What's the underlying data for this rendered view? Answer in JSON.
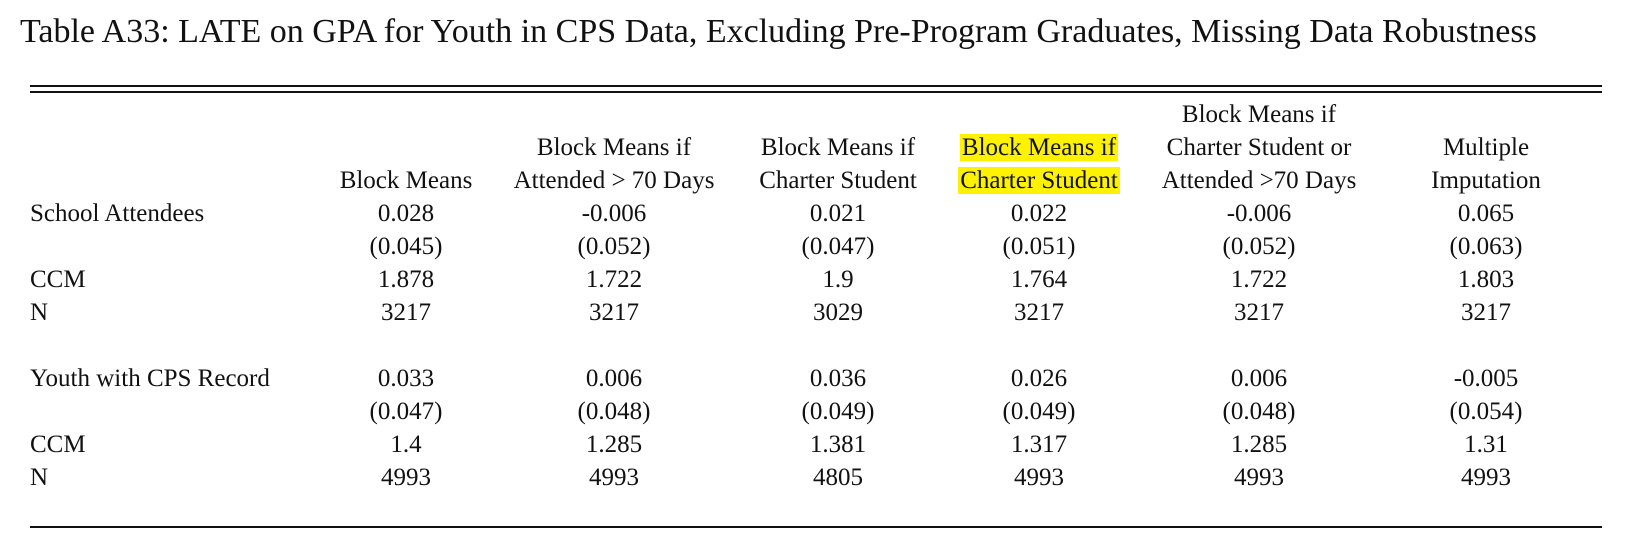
{
  "title": "Table A33: LATE on GPA for Youth in CPS Data, Excluding Pre-Program Graduates, Missing Data Robustness",
  "header": {
    "col1": [
      "",
      "",
      "Block Means"
    ],
    "col2": [
      "",
      "Block Means if",
      "Attended > 70 Days"
    ],
    "col3": [
      "",
      "Block Means if",
      "Charter Student"
    ],
    "col4": [
      "",
      "Block Means if",
      "Charter Student"
    ],
    "col5": [
      "Block Means if",
      "Charter Student or",
      "Attended >70 Days"
    ],
    "col6": [
      "",
      "Multiple",
      "Imputation"
    ]
  },
  "highlight": {
    "column": 4,
    "color": "#fff200"
  },
  "panels": [
    {
      "rows": [
        {
          "label": "School Attendees",
          "values": [
            "0.028",
            "-0.006",
            "0.021",
            "0.022",
            "-0.006",
            "0.065"
          ]
        },
        {
          "label": "",
          "values": [
            "(0.045)",
            "(0.052)",
            "(0.047)",
            "(0.051)",
            "(0.052)",
            "(0.063)"
          ]
        },
        {
          "label": "CCM",
          "values": [
            "1.878",
            "1.722",
            "1.9",
            "1.764",
            "1.722",
            "1.803"
          ]
        },
        {
          "label": "N",
          "values": [
            "3217",
            "3217",
            "3029",
            "3217",
            "3217",
            "3217"
          ]
        }
      ]
    },
    {
      "rows": [
        {
          "label": "Youth with CPS Record",
          "values": [
            "0.033",
            "0.006",
            "0.036",
            "0.026",
            "0.006",
            "-0.005"
          ]
        },
        {
          "label": "",
          "values": [
            "(0.047)",
            "(0.048)",
            "(0.049)",
            "(0.049)",
            "(0.048)",
            "(0.054)"
          ]
        },
        {
          "label": "CCM",
          "values": [
            "1.4",
            "1.285",
            "1.381",
            "1.317",
            "1.285",
            "1.31"
          ]
        },
        {
          "label": "N",
          "values": [
            "4993",
            "4993",
            "4805",
            "4993",
            "4993",
            "4993"
          ]
        }
      ]
    }
  ]
}
